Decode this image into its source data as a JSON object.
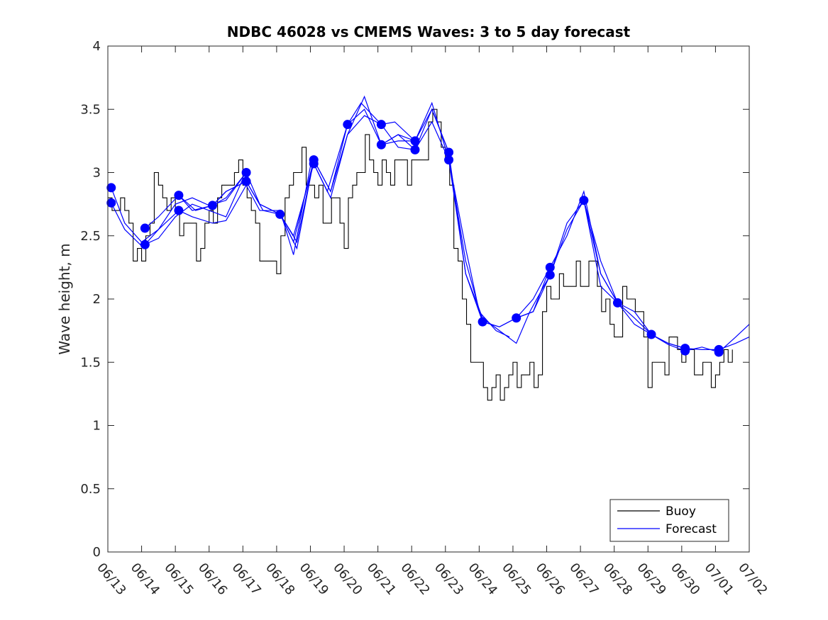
{
  "chart_data": {
    "type": "line",
    "title": "NDBC 46028 vs CMEMS Waves: 3 to 5 day forecast",
    "xlabel": "",
    "ylabel": "Wave height, m",
    "xlim": [
      "06/13",
      "07/02"
    ],
    "ylim": [
      0,
      4
    ],
    "x_tick_labels": [
      "06/13",
      "06/14",
      "06/15",
      "06/16",
      "06/17",
      "06/18",
      "06/19",
      "06/20",
      "06/21",
      "06/22",
      "06/23",
      "06/24",
      "06/25",
      "06/26",
      "06/27",
      "06/28",
      "06/29",
      "06/30",
      "07/01",
      "07/02"
    ],
    "y_ticks": [
      0,
      0.5,
      1,
      1.5,
      2,
      2.5,
      3,
      3.5,
      4
    ],
    "y_tick_labels": [
      "0",
      "0.5",
      "1",
      "1.5",
      "2",
      "2.5",
      "3",
      "3.5",
      "4"
    ],
    "grid": false,
    "legend_position": "bottom-right",
    "legend": [
      "Buoy",
      "Forecast"
    ],
    "colors": {
      "buoy": "#000000",
      "forecast": "#0000ff"
    },
    "buoy": {
      "name": "Buoy",
      "day_offsets": [
        0.0,
        0.4,
        0.7,
        1.0,
        1.4,
        1.7,
        2.0,
        2.4,
        2.7,
        3.0,
        3.4,
        3.7,
        4.0,
        4.4,
        4.7,
        5.0,
        5.3,
        5.6,
        6.0,
        6.4,
        6.7,
        7.0,
        7.3,
        7.6,
        8.0,
        8.4,
        8.7,
        9.0,
        9.4,
        9.7,
        10.0,
        10.4,
        10.7,
        11.0,
        11.4,
        11.7,
        12.0,
        12.4,
        12.7,
        13.0,
        13.4,
        13.7,
        14.0,
        14.4,
        14.7,
        15.0,
        15.4,
        15.7,
        16.0,
        16.4,
        16.7,
        17.0,
        17.4,
        17.7,
        18.0,
        18.4,
        18.6
      ],
      "values": [
        2.7,
        2.9,
        2.6,
        2.3,
        2.8,
        2.7,
        2.6,
        2.7,
        2.5,
        2.7,
        2.8,
        2.9,
        2.9,
        2.5,
        2.4,
        2.4,
        2.8,
        3.0,
        2.8,
        2.7,
        2.9,
        2.6,
        3.0,
        3.1,
        2.8,
        3.0,
        3.2,
        3.1,
        3.3,
        3.5,
        2.9,
        2.1,
        1.7,
        1.5,
        1.4,
        1.3,
        1.3,
        1.3,
        1.35,
        2.2,
        2.2,
        2.2,
        2.1,
        2.1,
        1.9,
        1.8,
        2.2,
        2.0,
        1.4,
        1.3,
        1.55,
        1.6,
        1.6,
        1.5,
        1.4,
        1.5,
        1.4
      ]
    },
    "forecast": {
      "name": "Forecast",
      "marker_day_offsets": [
        0.1,
        0.1,
        1.1,
        1.1,
        2.1,
        2.1,
        3.1,
        4.1,
        4.1,
        5.1,
        6.1,
        6.1,
        7.1,
        8.1,
        8.1,
        9.1,
        9.1,
        10.1,
        10.1,
        11.1,
        12.1,
        13.1,
        13.1,
        14.1,
        15.1,
        16.1,
        17.1,
        17.1,
        18.1,
        18.1
      ],
      "marker_values": [
        2.88,
        2.76,
        2.56,
        2.43,
        2.82,
        2.7,
        2.74,
        3.0,
        2.93,
        2.67,
        3.1,
        3.07,
        3.38,
        3.38,
        3.22,
        3.25,
        3.18,
        3.16,
        3.1,
        1.82,
        1.85,
        2.25,
        2.19,
        2.78,
        1.97,
        1.72,
        1.61,
        1.59,
        1.6,
        1.58
      ],
      "runs": [
        {
          "day_offsets": [
            0.1,
            0.5,
            1.0,
            1.5,
            2.0,
            2.5,
            3.0,
            3.5,
            4.1
          ],
          "values": [
            2.88,
            2.6,
            2.45,
            2.55,
            2.75,
            2.8,
            2.74,
            2.78,
            3.0
          ]
        },
        {
          "day_offsets": [
            0.1,
            0.5,
            1.0,
            1.5,
            2.0,
            2.5,
            3.0,
            3.5,
            4.0
          ],
          "values": [
            2.76,
            2.55,
            2.42,
            2.48,
            2.65,
            2.75,
            2.7,
            2.65,
            2.95
          ]
        },
        {
          "day_offsets": [
            1.1,
            1.5,
            2.1,
            2.5,
            3.1,
            3.5,
            4.1,
            4.5,
            5.1,
            5.5,
            6.1
          ],
          "values": [
            2.56,
            2.65,
            2.82,
            2.7,
            2.74,
            2.85,
            2.93,
            2.75,
            2.67,
            2.45,
            3.1
          ]
        },
        {
          "day_offsets": [
            1.1,
            1.5,
            2.1,
            2.5,
            3.1,
            3.5,
            4.1,
            4.5,
            5.1,
            5.5,
            6.0
          ],
          "values": [
            2.43,
            2.55,
            2.7,
            2.65,
            2.6,
            2.62,
            2.9,
            2.7,
            2.7,
            2.35,
            3.05
          ]
        },
        {
          "day_offsets": [
            2.1,
            2.6,
            3.1,
            3.5,
            4.1,
            4.5,
            5.1,
            5.5,
            6.1,
            6.5,
            7.1,
            7.5,
            8.1,
            8.5,
            9.1
          ],
          "values": [
            2.82,
            2.7,
            2.74,
            2.8,
            3.0,
            2.75,
            2.67,
            2.5,
            3.07,
            2.85,
            3.38,
            3.55,
            3.38,
            3.4,
            3.25
          ]
        },
        {
          "day_offsets": [
            3.1,
            3.5,
            4.1,
            4.6,
            5.1,
            5.6,
            6.1,
            6.6,
            7.1,
            7.6,
            8.1,
            8.6,
            9.1,
            9.6,
            10.1
          ],
          "values": [
            2.74,
            2.85,
            2.93,
            2.7,
            2.67,
            2.4,
            3.1,
            2.85,
            3.3,
            3.6,
            3.22,
            3.3,
            3.18,
            3.5,
            3.16
          ]
        },
        {
          "day_offsets": [
            5.1,
            5.6,
            6.1,
            6.6,
            7.1,
            7.6,
            8.1,
            8.6,
            9.1,
            9.6,
            10.1,
            10.6,
            11.0,
            11.5,
            11.9
          ],
          "values": [
            2.67,
            2.45,
            3.1,
            2.85,
            3.38,
            3.5,
            3.22,
            3.25,
            3.25,
            3.55,
            3.1,
            2.4,
            1.9,
            1.75,
            1.7
          ]
        },
        {
          "day_offsets": [
            6.1,
            6.6,
            7.1,
            7.6,
            8.1,
            8.6,
            9.1,
            9.6,
            10.1,
            10.6,
            11.1,
            11.6,
            12.1,
            12.6,
            13.1
          ],
          "values": [
            3.07,
            2.8,
            3.3,
            3.45,
            3.38,
            3.2,
            3.18,
            3.4,
            3.1,
            2.3,
            1.82,
            1.78,
            1.85,
            2.0,
            2.25
          ]
        },
        {
          "day_offsets": [
            8.1,
            8.6,
            9.1,
            9.6,
            10.1,
            10.6,
            11.1,
            11.6,
            12.1,
            12.5,
            13.1,
            13.6,
            14.1,
            14.6,
            15.1
          ],
          "values": [
            3.22,
            3.3,
            3.25,
            3.5,
            3.16,
            2.2,
            1.85,
            1.75,
            1.65,
            1.9,
            2.19,
            2.6,
            2.78,
            2.1,
            1.97
          ]
        },
        {
          "day_offsets": [
            10.1,
            10.6,
            11.1,
            11.6,
            12.1,
            12.6,
            13.1,
            13.6,
            14.1,
            14.6,
            15.1,
            15.6,
            16.1,
            16.6,
            17.1
          ],
          "values": [
            3.1,
            2.2,
            1.82,
            1.78,
            1.85,
            1.9,
            2.25,
            2.5,
            2.85,
            2.2,
            1.97,
            1.8,
            1.72,
            1.65,
            1.61
          ]
        },
        {
          "day_offsets": [
            12.1,
            12.6,
            13.1,
            13.6,
            14.1,
            14.6,
            15.1,
            15.6,
            16.1,
            16.6,
            17.1,
            17.6,
            18.1,
            18.6,
            19.0
          ],
          "values": [
            1.85,
            1.9,
            2.19,
            2.55,
            2.78,
            2.2,
            1.97,
            1.9,
            1.72,
            1.65,
            1.61,
            1.6,
            1.6,
            1.65,
            1.7
          ]
        },
        {
          "day_offsets": [
            14.1,
            14.6,
            15.1,
            15.6,
            16.1,
            16.6,
            17.1,
            17.6,
            18.1,
            18.6,
            19.0
          ],
          "values": [
            2.78,
            2.3,
            1.97,
            1.85,
            1.72,
            1.64,
            1.59,
            1.62,
            1.58,
            1.7,
            1.8
          ]
        }
      ]
    }
  }
}
